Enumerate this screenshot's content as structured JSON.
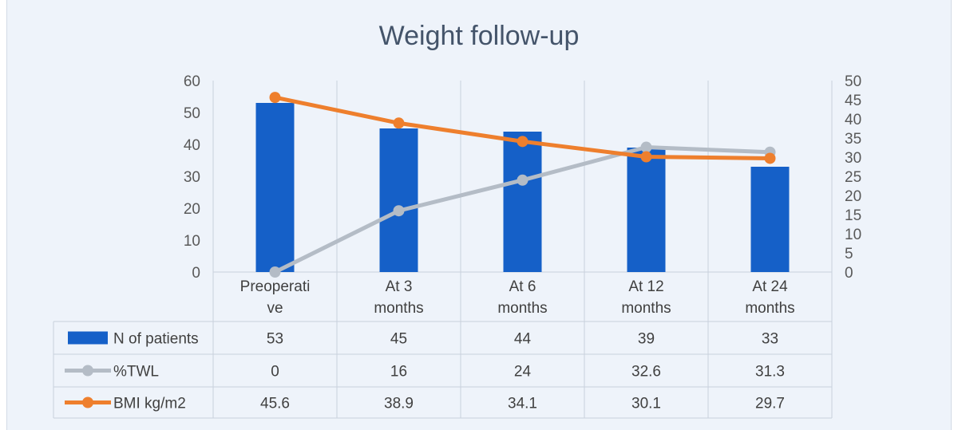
{
  "chart_data": {
    "type": "bar",
    "title": "Weight follow-up",
    "categories": [
      "Preoperative",
      "At 3 months",
      "At 6 months",
      "At 12 months",
      "At 24 months"
    ],
    "category_lines": [
      [
        "Preoperati",
        "ve"
      ],
      [
        "At 3",
        "months"
      ],
      [
        "At 6",
        "months"
      ],
      [
        "At 12",
        "months"
      ],
      [
        "At 24",
        "months"
      ]
    ],
    "series": [
      {
        "name": "N of patients",
        "kind": "bar",
        "axis": "left",
        "color": "#1560c8",
        "values": [
          53,
          45,
          44,
          39,
          33
        ]
      },
      {
        "name": "%TWL",
        "kind": "line",
        "axis": "right",
        "color": "#b4bcc6",
        "values": [
          0,
          16,
          24,
          32.6,
          31.3
        ]
      },
      {
        "name": "BMI kg/m2",
        "kind": "line",
        "axis": "right",
        "color": "#ee7f2d",
        "values": [
          45.6,
          38.9,
          34.1,
          30.1,
          29.7
        ]
      }
    ],
    "table_values": [
      [
        "53",
        "45",
        "44",
        "39",
        "33"
      ],
      [
        "0",
        "16",
        "24",
        "32.6",
        "31.3"
      ],
      [
        "45.6",
        "38.9",
        "34.1",
        "30.1",
        "29.7"
      ]
    ],
    "y_left": {
      "min": 0,
      "max": 60,
      "ticks": [
        0,
        10,
        20,
        30,
        40,
        50,
        60
      ]
    },
    "y_right": {
      "min": 0,
      "max": 50,
      "ticks": [
        0,
        5,
        10,
        15,
        20,
        25,
        30,
        35,
        40,
        45,
        50
      ]
    },
    "grid": true,
    "data_table": true,
    "legend_position": "bottom"
  }
}
